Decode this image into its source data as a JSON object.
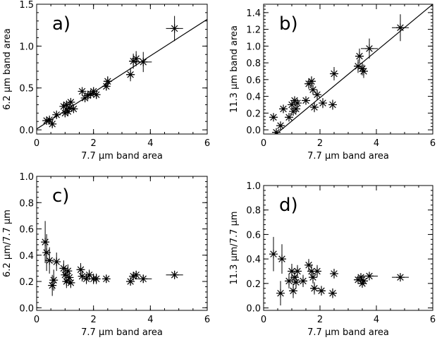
{
  "chart_data": [
    {
      "type": "scatter",
      "panel_label": "a)",
      "xlabel": "7.7 μm band area",
      "ylabel": "6.2  μm band area",
      "xlim": [
        0,
        6
      ],
      "ylim": [
        -0.05,
        1.5
      ],
      "xticks": [
        0,
        2,
        4,
        6
      ],
      "yticks": [
        0.0,
        0.5,
        1.0,
        1.5
      ],
      "fit_line": {
        "x": [
          0,
          6
        ],
        "y": [
          0.01,
          1.32
        ]
      },
      "points": [
        {
          "x": 0.35,
          "y": 0.11,
          "xerr": 0.05,
          "yerr": 0.03
        },
        {
          "x": 0.45,
          "y": 0.12,
          "xerr": 0.06,
          "yerr": 0.03
        },
        {
          "x": 0.55,
          "y": 0.07,
          "xerr": 0.06,
          "yerr": 0.04
        },
        {
          "x": 0.7,
          "y": 0.18,
          "xerr": 0.06,
          "yerr": 0.03
        },
        {
          "x": 0.95,
          "y": 0.28,
          "xerr": 0.07,
          "yerr": 0.04
        },
        {
          "x": 1.0,
          "y": 0.2,
          "xerr": 0.07,
          "yerr": 0.04
        },
        {
          "x": 1.05,
          "y": 0.3,
          "xerr": 0.08,
          "yerr": 0.04
        },
        {
          "x": 1.1,
          "y": 0.22,
          "xerr": 0.08,
          "yerr": 0.04
        },
        {
          "x": 1.15,
          "y": 0.26,
          "xerr": 0.08,
          "yerr": 0.04
        },
        {
          "x": 1.2,
          "y": 0.33,
          "xerr": 0.08,
          "yerr": 0.04
        },
        {
          "x": 1.3,
          "y": 0.25,
          "xerr": 0.08,
          "yerr": 0.04
        },
        {
          "x": 1.6,
          "y": 0.46,
          "xerr": 0.1,
          "yerr": 0.05
        },
        {
          "x": 1.7,
          "y": 0.38,
          "xerr": 0.1,
          "yerr": 0.05
        },
        {
          "x": 1.8,
          "y": 0.41,
          "xerr": 0.1,
          "yerr": 0.05
        },
        {
          "x": 1.9,
          "y": 0.43,
          "xerr": 0.1,
          "yerr": 0.05
        },
        {
          "x": 2.0,
          "y": 0.46,
          "xerr": 0.1,
          "yerr": 0.05
        },
        {
          "x": 2.1,
          "y": 0.42,
          "xerr": 0.12,
          "yerr": 0.05
        },
        {
          "x": 2.45,
          "y": 0.52,
          "xerr": 0.12,
          "yerr": 0.05
        },
        {
          "x": 2.5,
          "y": 0.58,
          "xerr": 0.12,
          "yerr": 0.06
        },
        {
          "x": 3.3,
          "y": 0.66,
          "xerr": 0.15,
          "yerr": 0.08
        },
        {
          "x": 3.4,
          "y": 0.82,
          "xerr": 0.15,
          "yerr": 0.09
        },
        {
          "x": 3.5,
          "y": 0.85,
          "xerr": 0.15,
          "yerr": 0.09
        },
        {
          "x": 3.75,
          "y": 0.81,
          "xerr": 0.3,
          "yerr": 0.12
        },
        {
          "x": 4.85,
          "y": 1.21,
          "xerr": 0.3,
          "yerr": 0.15
        }
      ]
    },
    {
      "type": "scatter",
      "panel_label": "b)",
      "xlabel": "7.7 μm band area",
      "ylabel": "11.3  μm band area",
      "xlim": [
        0,
        6
      ],
      "ylim": [
        -0.05,
        1.5
      ],
      "xticks": [
        0,
        2,
        4,
        6
      ],
      "yticks": [
        0.0,
        0.2,
        0.4,
        0.6,
        0.8,
        1.0,
        1.2,
        1.4
      ],
      "fit_line": {
        "x": [
          0.3,
          6
        ],
        "y": [
          -0.09,
          1.5
        ]
      },
      "points": [
        {
          "x": 0.35,
          "y": 0.15,
          "xerr": 0.05,
          "yerr": 0.03
        },
        {
          "x": 0.45,
          "y": -0.03,
          "xerr": 0.06,
          "yerr": 0.03
        },
        {
          "x": 0.6,
          "y": 0.05,
          "xerr": 0.06,
          "yerr": 0.04
        },
        {
          "x": 0.7,
          "y": 0.25,
          "xerr": 0.06,
          "yerr": 0.04
        },
        {
          "x": 0.9,
          "y": 0.15,
          "xerr": 0.07,
          "yerr": 0.04
        },
        {
          "x": 1.0,
          "y": 0.3,
          "xerr": 0.07,
          "yerr": 0.05
        },
        {
          "x": 1.05,
          "y": 0.22,
          "xerr": 0.08,
          "yerr": 0.05
        },
        {
          "x": 1.1,
          "y": 0.35,
          "xerr": 0.08,
          "yerr": 0.05
        },
        {
          "x": 1.15,
          "y": 0.25,
          "xerr": 0.08,
          "yerr": 0.05
        },
        {
          "x": 1.2,
          "y": 0.32,
          "xerr": 0.08,
          "yerr": 0.05
        },
        {
          "x": 1.5,
          "y": 0.35,
          "xerr": 0.1,
          "yerr": 0.05
        },
        {
          "x": 1.6,
          "y": 0.55,
          "xerr": 0.1,
          "yerr": 0.06
        },
        {
          "x": 1.7,
          "y": 0.58,
          "xerr": 0.1,
          "yerr": 0.06
        },
        {
          "x": 1.75,
          "y": 0.48,
          "xerr": 0.1,
          "yerr": 0.06
        },
        {
          "x": 1.8,
          "y": 0.27,
          "xerr": 0.1,
          "yerr": 0.06
        },
        {
          "x": 1.9,
          "y": 0.42,
          "xerr": 0.1,
          "yerr": 0.06
        },
        {
          "x": 2.1,
          "y": 0.32,
          "xerr": 0.12,
          "yerr": 0.06
        },
        {
          "x": 2.45,
          "y": 0.3,
          "xerr": 0.12,
          "yerr": 0.06
        },
        {
          "x": 2.5,
          "y": 0.67,
          "xerr": 0.12,
          "yerr": 0.08
        },
        {
          "x": 3.35,
          "y": 0.76,
          "xerr": 0.15,
          "yerr": 0.08
        },
        {
          "x": 3.4,
          "y": 0.88,
          "xerr": 0.15,
          "yerr": 0.09
        },
        {
          "x": 3.5,
          "y": 0.73,
          "xerr": 0.15,
          "yerr": 0.08
        },
        {
          "x": 3.55,
          "y": 0.7,
          "xerr": 0.15,
          "yerr": 0.08
        },
        {
          "x": 3.75,
          "y": 0.97,
          "xerr": 0.3,
          "yerr": 0.12
        },
        {
          "x": 4.85,
          "y": 1.22,
          "xerr": 0.3,
          "yerr": 0.16
        }
      ]
    },
    {
      "type": "scatter",
      "panel_label": "c)",
      "xlabel": "7.7 μm band area",
      "ylabel": "6.2 μm/7.7 μm",
      "xlim": [
        0,
        6
      ],
      "ylim": [
        -0.02,
        1.0
      ],
      "xticks": [
        0,
        2,
        4,
        6
      ],
      "yticks": [
        0.0,
        0.2,
        0.4,
        0.6,
        0.8,
        1.0
      ],
      "points": [
        {
          "x": 0.3,
          "y": 0.5,
          "xerr": 0.05,
          "yerr": 0.16
        },
        {
          "x": 0.35,
          "y": 0.42,
          "xerr": 0.05,
          "yerr": 0.14
        },
        {
          "x": 0.45,
          "y": 0.36,
          "xerr": 0.06,
          "yerr": 0.1
        },
        {
          "x": 0.55,
          "y": 0.17,
          "xerr": 0.06,
          "yerr": 0.08
        },
        {
          "x": 0.6,
          "y": 0.21,
          "xerr": 0.06,
          "yerr": 0.08
        },
        {
          "x": 0.7,
          "y": 0.35,
          "xerr": 0.06,
          "yerr": 0.07
        },
        {
          "x": 0.95,
          "y": 0.3,
          "xerr": 0.07,
          "yerr": 0.06
        },
        {
          "x": 1.0,
          "y": 0.25,
          "xerr": 0.07,
          "yerr": 0.06
        },
        {
          "x": 1.05,
          "y": 0.2,
          "xerr": 0.08,
          "yerr": 0.05
        },
        {
          "x": 1.1,
          "y": 0.28,
          "xerr": 0.08,
          "yerr": 0.05
        },
        {
          "x": 1.15,
          "y": 0.23,
          "xerr": 0.08,
          "yerr": 0.05
        },
        {
          "x": 1.2,
          "y": 0.19,
          "xerr": 0.08,
          "yerr": 0.04
        },
        {
          "x": 1.55,
          "y": 0.29,
          "xerr": 0.1,
          "yerr": 0.05
        },
        {
          "x": 1.6,
          "y": 0.24,
          "xerr": 0.1,
          "yerr": 0.04
        },
        {
          "x": 1.75,
          "y": 0.22,
          "xerr": 0.1,
          "yerr": 0.04
        },
        {
          "x": 1.85,
          "y": 0.25,
          "xerr": 0.1,
          "yerr": 0.04
        },
        {
          "x": 2.0,
          "y": 0.22,
          "xerr": 0.1,
          "yerr": 0.04
        },
        {
          "x": 2.1,
          "y": 0.22,
          "xerr": 0.12,
          "yerr": 0.04
        },
        {
          "x": 2.45,
          "y": 0.22,
          "xerr": 0.12,
          "yerr": 0.03
        },
        {
          "x": 3.3,
          "y": 0.2,
          "xerr": 0.15,
          "yerr": 0.03
        },
        {
          "x": 3.4,
          "y": 0.24,
          "xerr": 0.15,
          "yerr": 0.03
        },
        {
          "x": 3.5,
          "y": 0.25,
          "xerr": 0.15,
          "yerr": 0.03
        },
        {
          "x": 3.75,
          "y": 0.22,
          "xerr": 0.3,
          "yerr": 0.03
        },
        {
          "x": 4.85,
          "y": 0.25,
          "xerr": 0.3,
          "yerr": 0.03
        }
      ]
    },
    {
      "type": "scatter",
      "panel_label": "d)",
      "xlabel": "7.7 μm band area",
      "ylabel": "11.3 μm/7.7 μm",
      "xlim": [
        0,
        6
      ],
      "ylim": [
        -0.02,
        1.0
      ],
      "xticks": [
        0,
        2,
        4,
        6
      ],
      "yticks": [
        0.0,
        0.2,
        0.4,
        0.6,
        0.8,
        1.0
      ],
      "points": [
        {
          "x": 0.35,
          "y": 0.44,
          "xerr": 0.05,
          "yerr": 0.14
        },
        {
          "x": 0.6,
          "y": 0.12,
          "xerr": 0.06,
          "yerr": 0.1
        },
        {
          "x": 0.65,
          "y": 0.4,
          "xerr": 0.06,
          "yerr": 0.12
        },
        {
          "x": 0.9,
          "y": 0.22,
          "xerr": 0.07,
          "yerr": 0.06
        },
        {
          "x": 1.0,
          "y": 0.3,
          "xerr": 0.07,
          "yerr": 0.06
        },
        {
          "x": 1.05,
          "y": 0.14,
          "xerr": 0.08,
          "yerr": 0.06
        },
        {
          "x": 1.1,
          "y": 0.25,
          "xerr": 0.08,
          "yerr": 0.05
        },
        {
          "x": 1.15,
          "y": 0.21,
          "xerr": 0.08,
          "yerr": 0.05
        },
        {
          "x": 1.2,
          "y": 0.3,
          "xerr": 0.08,
          "yerr": 0.05
        },
        {
          "x": 1.4,
          "y": 0.22,
          "xerr": 0.1,
          "yerr": 0.05
        },
        {
          "x": 1.6,
          "y": 0.35,
          "xerr": 0.1,
          "yerr": 0.05
        },
        {
          "x": 1.7,
          "y": 0.3,
          "xerr": 0.1,
          "yerr": 0.05
        },
        {
          "x": 1.75,
          "y": 0.25,
          "xerr": 0.1,
          "yerr": 0.05
        },
        {
          "x": 1.8,
          "y": 0.16,
          "xerr": 0.1,
          "yerr": 0.05
        },
        {
          "x": 1.9,
          "y": 0.3,
          "xerr": 0.1,
          "yerr": 0.05
        },
        {
          "x": 2.05,
          "y": 0.14,
          "xerr": 0.12,
          "yerr": 0.04
        },
        {
          "x": 2.45,
          "y": 0.12,
          "xerr": 0.12,
          "yerr": 0.04
        },
        {
          "x": 2.5,
          "y": 0.28,
          "xerr": 0.12,
          "yerr": 0.04
        },
        {
          "x": 3.35,
          "y": 0.23,
          "xerr": 0.15,
          "yerr": 0.03
        },
        {
          "x": 3.45,
          "y": 0.25,
          "xerr": 0.15,
          "yerr": 0.03
        },
        {
          "x": 3.5,
          "y": 0.2,
          "xerr": 0.15,
          "yerr": 0.03
        },
        {
          "x": 3.55,
          "y": 0.22,
          "xerr": 0.15,
          "yerr": 0.03
        },
        {
          "x": 3.75,
          "y": 0.26,
          "xerr": 0.3,
          "yerr": 0.03
        },
        {
          "x": 4.85,
          "y": 0.25,
          "xerr": 0.3,
          "yerr": 0.03
        }
      ]
    }
  ]
}
